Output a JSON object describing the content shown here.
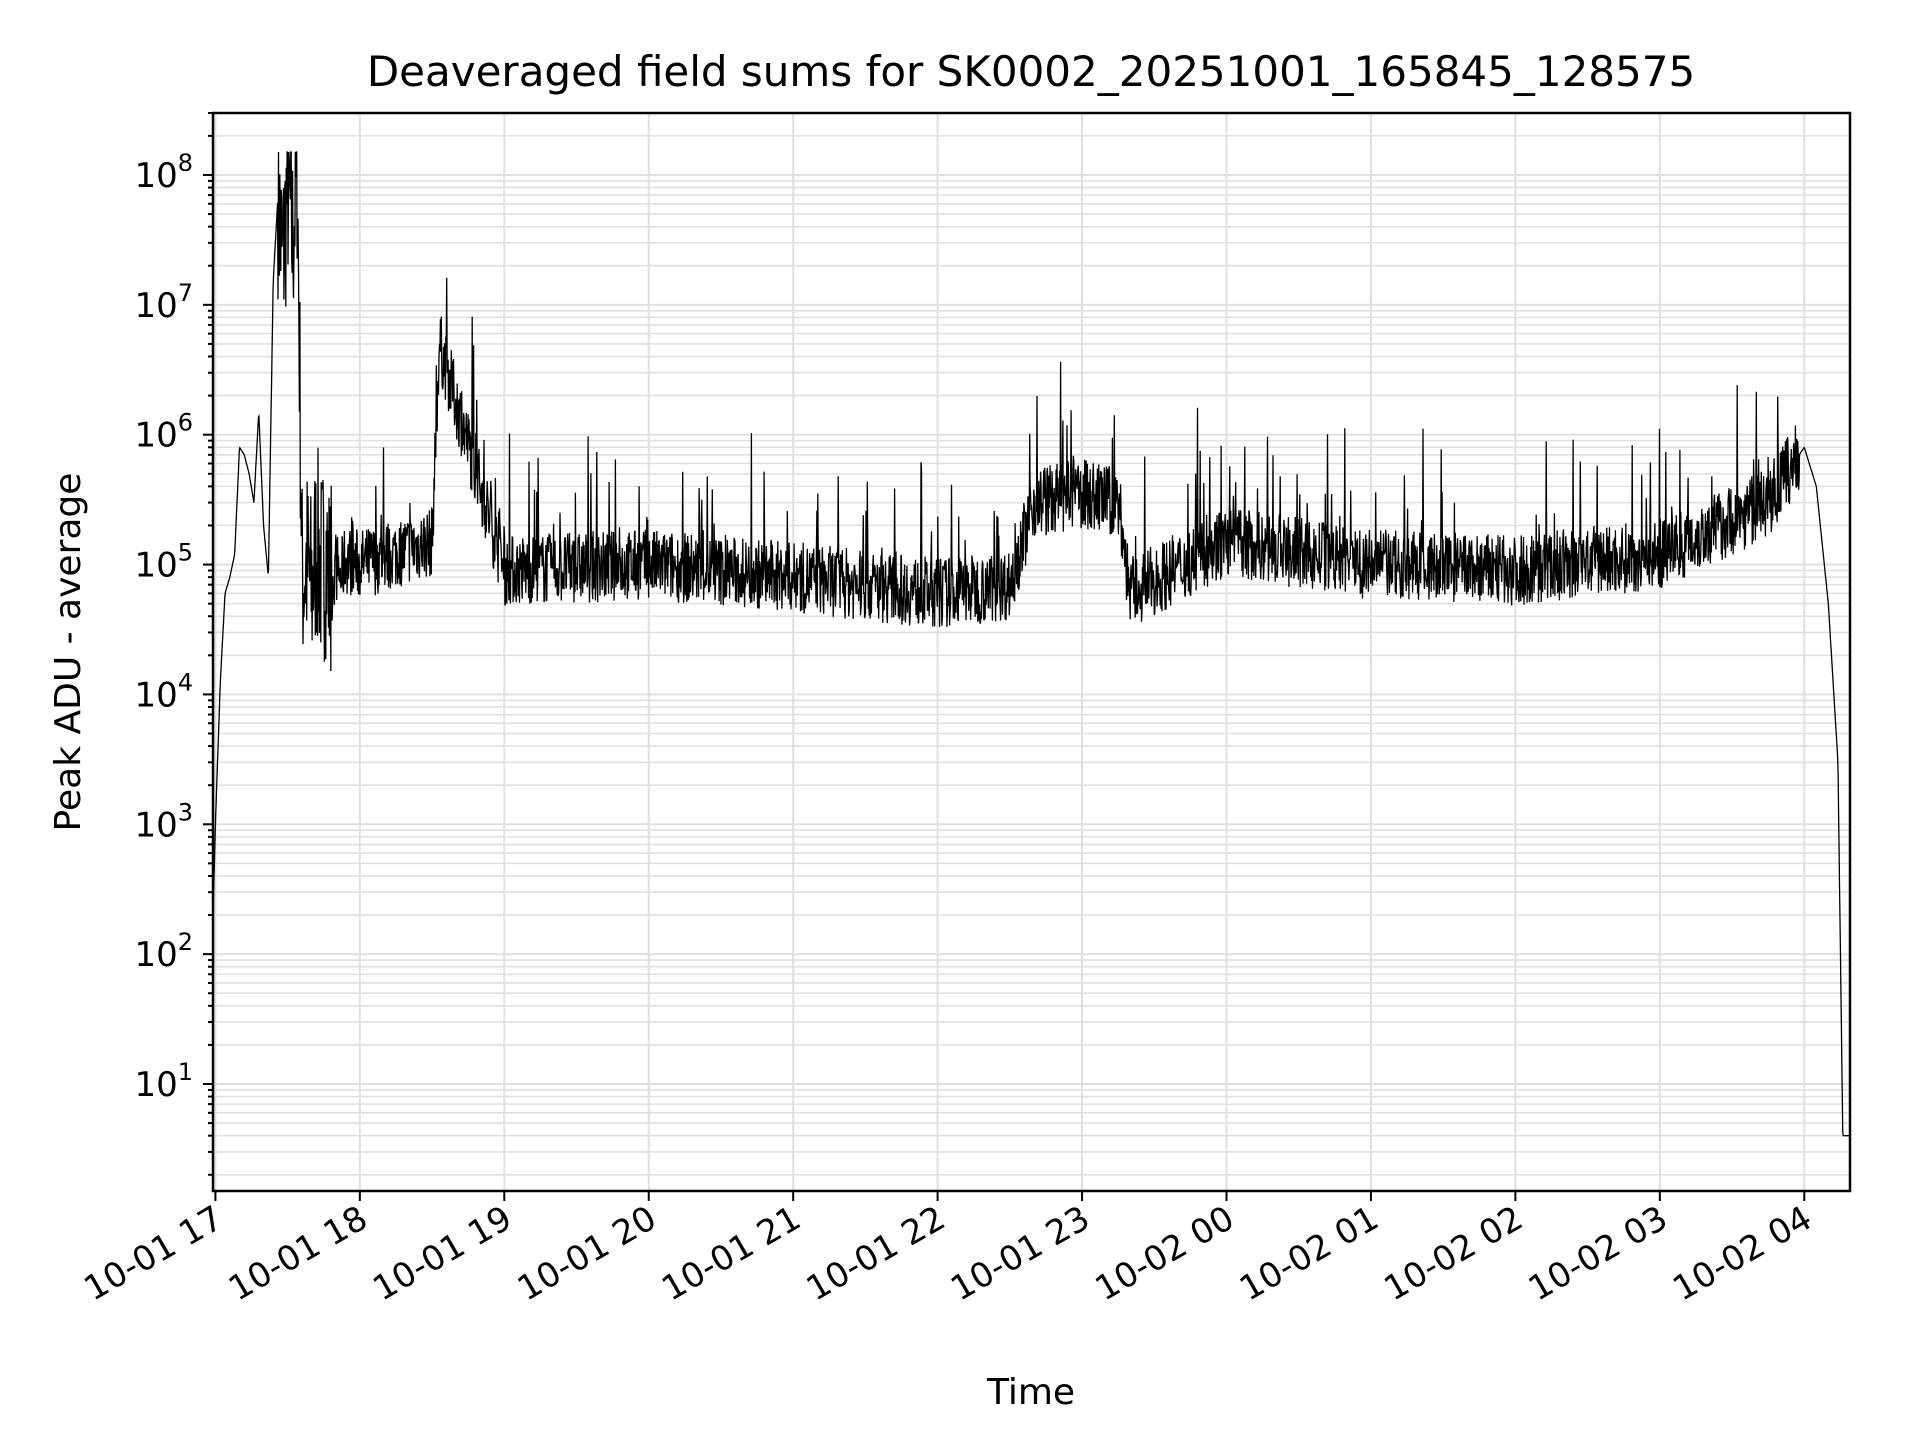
{
  "chart_data": {
    "type": "line",
    "title": "Deaveraged field sums for SK0002_20251001_165845_128575",
    "xlabel": "Time",
    "ylabel": "Peak ADU - average",
    "yscale": "log",
    "ylim": [
      1.5,
      300000000
    ],
    "xlim": [
      "2025-10-01 16:59",
      "2025-10-02 04:19"
    ],
    "grid": true,
    "line_color": "#000000",
    "grid_color": "#e0e0e0",
    "x_ticks": [
      {
        "time": "2025-10-01 17:00",
        "label": "10-01 17"
      },
      {
        "time": "2025-10-01 18:00",
        "label": "10-01 18"
      },
      {
        "time": "2025-10-01 19:00",
        "label": "10-01 19"
      },
      {
        "time": "2025-10-01 20:00",
        "label": "10-01 20"
      },
      {
        "time": "2025-10-01 21:00",
        "label": "10-01 21"
      },
      {
        "time": "2025-10-01 22:00",
        "label": "10-01 22"
      },
      {
        "time": "2025-10-01 23:00",
        "label": "10-01 23"
      },
      {
        "time": "2025-10-02 00:00",
        "label": "10-02 00"
      },
      {
        "time": "2025-10-02 01:00",
        "label": "10-02 01"
      },
      {
        "time": "2025-10-02 02:00",
        "label": "10-02 02"
      },
      {
        "time": "2025-10-02 03:00",
        "label": "10-02 03"
      },
      {
        "time": "2025-10-02 04:00",
        "label": "10-02 04"
      }
    ],
    "y_ticks": [
      {
        "value": 10,
        "base": "10",
        "exp": "1"
      },
      {
        "value": 100,
        "base": "10",
        "exp": "2"
      },
      {
        "value": 1000,
        "base": "10",
        "exp": "3"
      },
      {
        "value": 10000,
        "base": "10",
        "exp": "4"
      },
      {
        "value": 100000,
        "base": "10",
        "exp": "5"
      },
      {
        "value": 1000000,
        "base": "10",
        "exp": "6"
      },
      {
        "value": 10000000,
        "base": "10",
        "exp": "7"
      },
      {
        "value": 100000000,
        "base": "10",
        "exp": "8"
      }
    ],
    "series": [
      {
        "x": [
          "2025-10-01 16:59",
          "2025-10-01 17:00",
          "2025-10-01 17:02",
          "2025-10-01 17:04",
          "2025-10-01 17:06",
          "2025-10-01 17:08",
          "2025-10-01 17:10",
          "2025-10-01 17:12",
          "2025-10-01 17:14",
          "2025-10-01 17:16",
          "2025-10-01 17:18",
          "2025-10-01 17:20",
          "2025-10-01 17:22",
          "2025-10-01 17:24",
          "2025-10-01 17:26",
          "2025-10-01 17:28",
          "2025-10-01 17:30",
          "2025-10-01 17:32",
          "2025-10-01 17:34",
          "2025-10-01 17:36",
          "2025-10-01 17:38",
          "2025-10-01 17:40",
          "2025-10-01 17:42",
          "2025-10-01 17:44",
          "2025-10-01 17:46",
          "2025-10-01 17:48",
          "2025-10-01 17:50",
          "2025-10-01 17:52",
          "2025-10-01 17:54",
          "2025-10-01 18:00",
          "2025-10-01 18:30",
          "2025-10-01 18:33",
          "2025-10-01 19:00",
          "2025-10-01 20:00",
          "2025-10-01 21:00",
          "2025-10-01 22:00",
          "2025-10-01 22:30",
          "2025-10-01 22:40",
          "2025-10-01 23:00",
          "2025-10-01 23:15",
          "2025-10-01 23:20",
          "2025-10-02 00:00",
          "2025-10-02 01:00",
          "2025-10-02 02:00",
          "2025-10-02 03:00",
          "2025-10-02 03:45",
          "2025-10-02 04:00",
          "2025-10-02 04:05",
          "2025-10-02 04:10",
          "2025-10-02 04:14",
          "2025-10-02 04:16",
          "2025-10-02 04:19"
        ],
        "y": [
          200,
          1000,
          12000,
          60000,
          80000,
          120000,
          800000,
          700000,
          500000,
          300000,
          1500000,
          200000,
          80000,
          15000000,
          70000000,
          20000000,
          90000000,
          30000000,
          120000000,
          80000,
          100000,
          60000,
          150000,
          90000,
          120000,
          60000,
          100000,
          80000,
          110000,
          100000,
          150000,
          5000000,
          90000,
          100000,
          80000,
          60000,
          70000,
          300000,
          350000,
          300000,
          60000,
          150000,
          100000,
          90000,
          120000,
          300000,
          800000,
          400000,
          50000,
          3000,
          4,
          4
        ]
      }
    ]
  }
}
